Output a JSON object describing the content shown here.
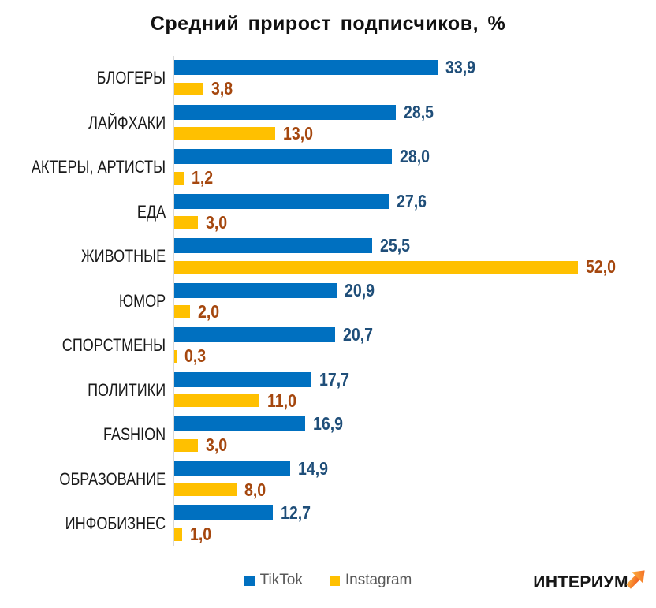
{
  "title": "Средний прирост подписчиков, %",
  "logo": {
    "text": "ИНТЕРИУМ"
  },
  "colors": {
    "tiktok_bar": "#0070C0",
    "instagram_bar": "#FFC000",
    "tiktok_value_text": "#1F4E79",
    "instagram_value_text": "#A5470E",
    "axis_line": "#D9D9D9",
    "legend_text": "#595959",
    "logo_arrow_light": "#FBAE3C",
    "logo_arrow_dark": "#F1591F"
  },
  "chart_data": {
    "type": "bar",
    "orientation": "horizontal",
    "title": "Средний прирост подписчиков, %",
    "xlabel": "",
    "ylabel": "",
    "xlim": [
      0,
      62
    ],
    "grid": false,
    "legend_position": "bottom-center",
    "categories": [
      "БЛОГЕРЫ",
      "ЛАЙФХАКИ",
      "АКТЕРЫ, АРТИСТЫ",
      "ЕДА",
      "ЖИВОТНЫЕ",
      "ЮМОР",
      "СПОРСТМЕНЫ",
      "ПОЛИТИКИ",
      "FASHION",
      "ОБРАЗОВАНИЕ",
      "ИНФОБИЗНЕС"
    ],
    "series": [
      {
        "name": "TikTok",
        "color": "#0070C0",
        "label_color": "#1F4E79",
        "values": [
          33.9,
          28.5,
          28.0,
          27.6,
          25.5,
          20.9,
          20.7,
          17.7,
          16.9,
          14.9,
          12.7
        ],
        "labels": [
          "33,9",
          "28,5",
          "28,0",
          "27,6",
          "25,5",
          "20,9",
          "20,7",
          "17,7",
          "16,9",
          "14,9",
          "12,7"
        ]
      },
      {
        "name": "Instagram",
        "color": "#FFC000",
        "label_color": "#A5470E",
        "values": [
          3.8,
          13.0,
          1.2,
          3.0,
          52.0,
          2.0,
          0.3,
          11.0,
          3.0,
          8.0,
          1.0
        ],
        "labels": [
          "3,8",
          "13,0",
          "1,2",
          "3,0",
          "52,0",
          "2,0",
          "0,3",
          "11,0",
          "3,0",
          "8,0",
          "1,0"
        ]
      }
    ]
  }
}
